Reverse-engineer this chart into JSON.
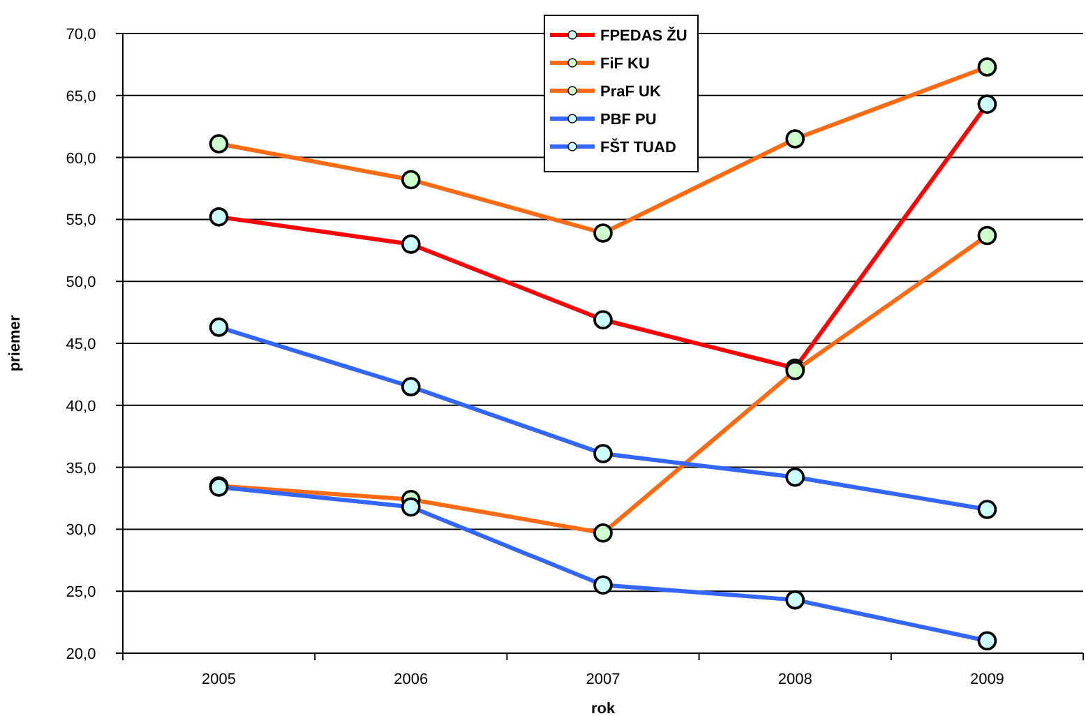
{
  "chart_data": {
    "type": "line",
    "xlabel": "rok",
    "ylabel": "priemer",
    "categories": [
      "2005",
      "2006",
      "2007",
      "2008",
      "2009"
    ],
    "series": [
      {
        "name": "FPEDAS ŽU",
        "color": "#ff0000",
        "values": [
          55.2,
          53.0,
          46.9,
          43.0,
          64.3
        ]
      },
      {
        "name": "FiF KU",
        "color": "#ff6a13",
        "values": [
          61.1,
          58.2,
          53.9,
          61.5,
          67.3
        ]
      },
      {
        "name": "PraF UK",
        "color": "#ff6a13",
        "values": [
          33.5,
          32.4,
          29.7,
          42.8,
          53.7
        ]
      },
      {
        "name": "PBF PU",
        "color": "#3366ff",
        "values": [
          46.3,
          41.5,
          36.1,
          34.2,
          31.6
        ]
      },
      {
        "name": "FŠT TUAD",
        "color": "#3366ff",
        "values": [
          33.4,
          31.8,
          25.5,
          24.3,
          21.0
        ]
      }
    ],
    "ylim": [
      20,
      70
    ],
    "yticks": [
      {
        "value": 20,
        "label": "20,0"
      },
      {
        "value": 25,
        "label": "25,0"
      },
      {
        "value": 30,
        "label": "30,0"
      },
      {
        "value": 35,
        "label": "35,0"
      },
      {
        "value": 40,
        "label": "40,0"
      },
      {
        "value": 45,
        "label": "45,0"
      },
      {
        "value": 50,
        "label": "50,0"
      },
      {
        "value": 55,
        "label": "55,0"
      },
      {
        "value": 60,
        "label": "60,0"
      },
      {
        "value": 65,
        "label": "65,0"
      },
      {
        "value": 70,
        "label": "70,0"
      }
    ],
    "grid": "y",
    "legend": "top",
    "marker": "circle",
    "line_style": "solid"
  }
}
